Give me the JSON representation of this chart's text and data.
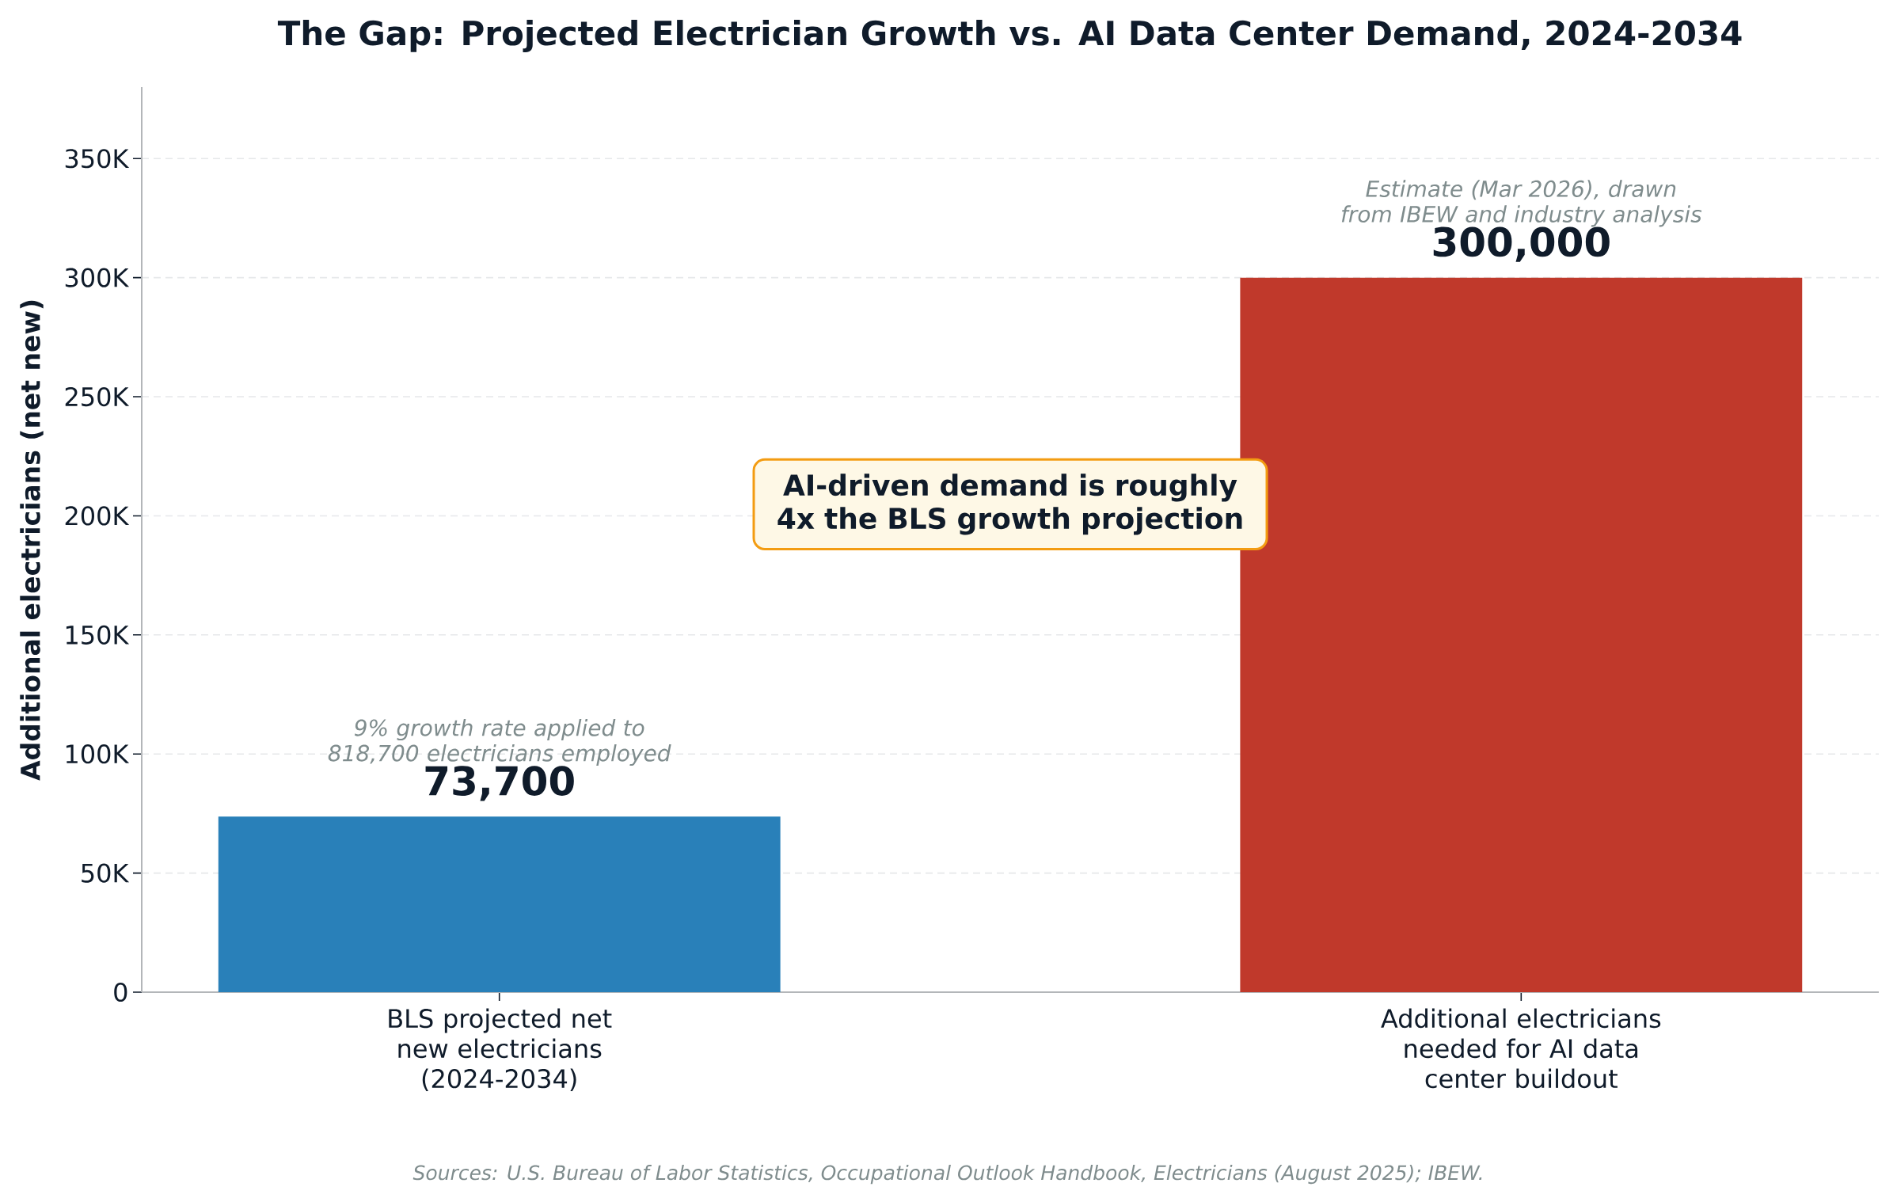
{
  "chart_data": {
    "type": "bar",
    "title": "The Gap: Projected Electrician Growth vs. AI Data Center Demand, 2024-2034",
    "ylabel": "Additional electricians (net new)",
    "categories": [
      "BLS projected net new electricians (2024-2034)",
      "Additional electricians needed for AI data center buildout"
    ],
    "values": [
      73700,
      300000
    ],
    "colors": [
      "#2980b9",
      "#c0392b"
    ],
    "value_labels": [
      "73,700",
      "300,000"
    ],
    "ylim": [
      0,
      380000
    ],
    "yticks": [
      0,
      {
        "value": 50000,
        "label": "50K"
      },
      {
        "value": 100000,
        "label": "100K"
      },
      {
        "value": 150000,
        "label": "150K"
      },
      {
        "value": 200000,
        "label": "200K"
      },
      {
        "value": 250000,
        "label": "250K"
      },
      {
        "value": 300000,
        "label": "300K"
      },
      {
        "value": 350000,
        "label": "350K"
      }
    ],
    "grid": "y",
    "annotations": [
      {
        "text": "9% growth rate applied to 818,700 electricians employed",
        "x": "BLS projected net new electricians (2024-2034)",
        "y": 73700
      },
      {
        "text": "Estimate (Mar 2026), drawn from IBEW and industry analysis",
        "x": "Additional electricians needed for AI data center buildout",
        "y": 300000
      },
      "AI-driven demand is roughly 4x the BLS growth projection",
      "Sources: U.S. Bureau of Labor Statistics, Occupational Outlook Handbook, Electricians (August 2025); IBEW."
    ]
  }
}
